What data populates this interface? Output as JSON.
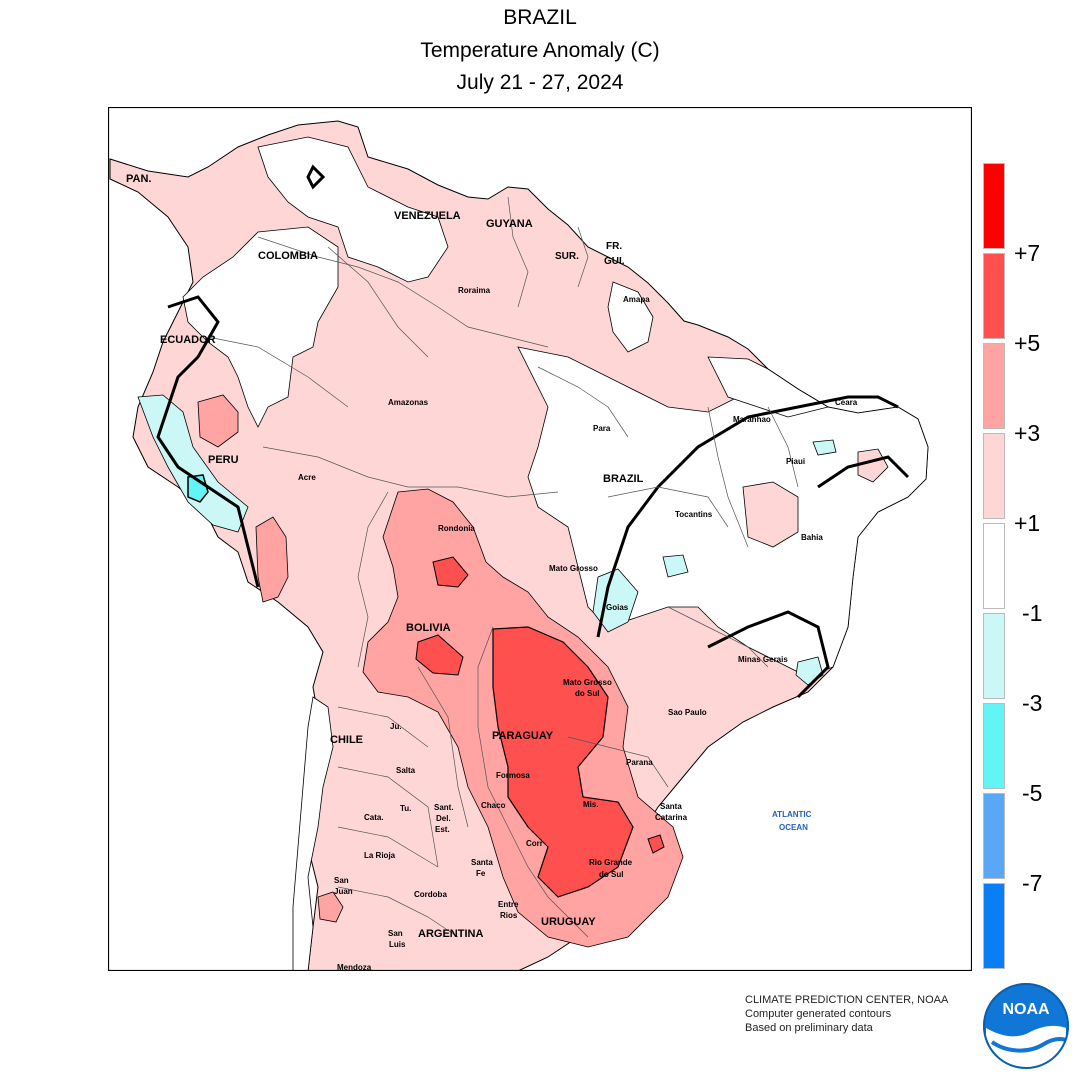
{
  "title": {
    "region": "BRAZIL",
    "variable": "Temperature Anomaly (C)",
    "period": "July 21 - 27, 2024"
  },
  "legend": {
    "bins": [
      {
        "color": "#ff0000"
      },
      {
        "color": "#ff5050"
      },
      {
        "color": "#ffa3a3"
      },
      {
        "color": "#ffd6d6"
      },
      {
        "color": "#ffffff"
      },
      {
        "color": "#ccf7f7"
      },
      {
        "color": "#63f5f5"
      },
      {
        "color": "#5aa8f5"
      },
      {
        "color": "#0a7ef5"
      }
    ],
    "labels": [
      "+7",
      "+5",
      "+3",
      "+1",
      "-1",
      "-3",
      "-5",
      "-7"
    ]
  },
  "credits": {
    "line1": "CLIMATE PREDICTION CENTER, NOAA",
    "line2": "Computer generated contours",
    "line3": "Based on preliminary data",
    "logo_text": "NOAA"
  },
  "map_labels": {
    "pan": "PAN.",
    "venezuela": "VENEZUELA",
    "guyana": "GUYANA",
    "colombia": "COLOMBIA",
    "sur": "SUR.",
    "fr_gui_1": "FR.",
    "fr_gui_2": "GUI.",
    "roraima": "Roraima",
    "amapa": "Amapa",
    "ecuador": "ECUADOR",
    "amazonas": "Amazonas",
    "para": "Para",
    "maranhao": "Maranhao",
    "ceara": "Ceara",
    "piaui": "Piaui",
    "peru": "PERU",
    "acre": "Acre",
    "brazil": "BRAZIL",
    "tocantins": "Tocantins",
    "rondonia": "Rondonia",
    "bahia": "Bahia",
    "mato_grosso": "Mato Grosso",
    "goias": "Goias",
    "bolivia": "BOLIVIA",
    "minas_gerais": "Minas Gerais",
    "ms_1": "Mato Grosso",
    "ms_2": "do Sul",
    "sao_paulo": "Sao Paulo",
    "chile": "CHILE",
    "jujuy": "Ju.",
    "paraguay": "PARAGUAY",
    "salta": "Salta",
    "formosa": "Formosa",
    "parana": "Parana",
    "tucuman": "Tu.",
    "catamarca": "Cata.",
    "sde_1": "Sant.",
    "sde_2": "Del.",
    "sde_3": "Est.",
    "chaco": "Chaco",
    "misiones": "Mis.",
    "sc_1": "Santa",
    "sc_2": "Catarina",
    "atlantic_1": "ATLANTIC",
    "atlantic_2": "OCEAN",
    "la_rioja": "La Rioja",
    "corrientes": "Corr",
    "rgs_1": "Rio Grande",
    "rgs_2": "do Sul",
    "santa_fe_1": "Santa",
    "santa_fe_2": "Fe",
    "san_juan_1": "San",
    "san_juan_2": "Juan",
    "cordoba": "Cordoba",
    "entre_rios_1": "Entre",
    "entre_rios_2": "Rios",
    "uruguay": "URUGUAY",
    "san_luis_1": "San",
    "san_luis_2": "Luis",
    "argentina": "ARGENTINA",
    "mendoza": "Mendoza"
  }
}
